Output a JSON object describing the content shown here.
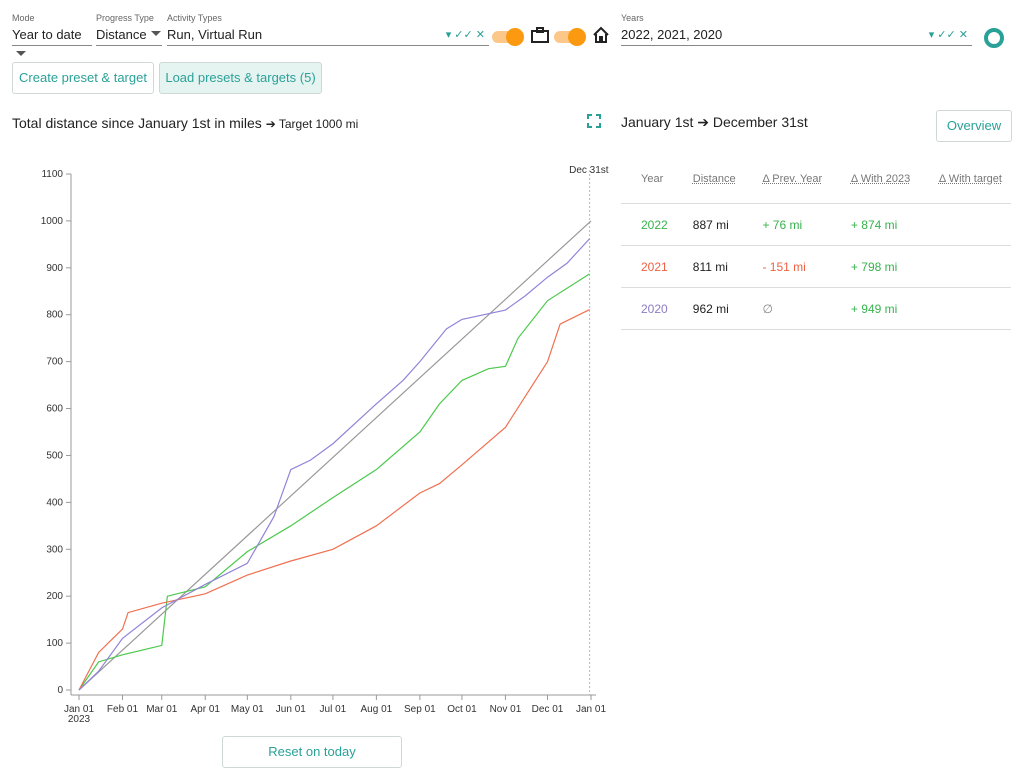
{
  "controls": {
    "mode": {
      "label": "Mode",
      "value": "Year to date"
    },
    "progress_type": {
      "label": "Progress Type",
      "value": "Distance"
    },
    "activity_types": {
      "label": "Activity Types",
      "value": "Run, Virtual Run"
    },
    "years": {
      "label": "Years",
      "value": "2022, 2021, 2020"
    }
  },
  "buttons": {
    "create": "Create preset & target",
    "load": "Load presets & targets (5)",
    "overview": "Overview",
    "reset": "Reset on today"
  },
  "chart_data": {
    "type": "line",
    "title": "Total distance since January 1st in miles",
    "target_label": "➔ Target 1000 mi",
    "target": 1000,
    "xlim": [
      "2023-01-01",
      "2024-01-01"
    ],
    "ylim": [
      0,
      1100
    ],
    "xticks": [
      {
        "value": "2023-01-01",
        "label": "Jan 01"
      },
      {
        "value": "2023-02-01",
        "label": "Feb 01"
      },
      {
        "value": "2023-03-01",
        "label": "Mar 01"
      },
      {
        "value": "2023-04-01",
        "label": "Apr 01"
      },
      {
        "value": "2023-05-01",
        "label": "May 01"
      },
      {
        "value": "2023-06-01",
        "label": "Jun 01"
      },
      {
        "value": "2023-07-01",
        "label": "Jul 01"
      },
      {
        "value": "2023-08-01",
        "label": "Aug 01"
      },
      {
        "value": "2023-09-01",
        "label": "Sep 01"
      },
      {
        "value": "2023-10-01",
        "label": "Oct 01"
      },
      {
        "value": "2023-11-01",
        "label": "Nov 01"
      },
      {
        "value": "2023-12-01",
        "label": "Dec 01"
      },
      {
        "value": "2024-01-01",
        "label": "Jan 01"
      }
    ],
    "x_year_label": "2023",
    "yticks": [
      0,
      100,
      200,
      300,
      400,
      500,
      600,
      700,
      800,
      900,
      1000,
      1100
    ],
    "grid": false,
    "marker": {
      "x": "2023-12-31",
      "label": "Dec 31st"
    },
    "series": [
      {
        "name": "2022",
        "color": "#4cc94c",
        "x": [
          "2023-01-01",
          "2023-01-15",
          "2023-02-01",
          "2023-03-01",
          "2023-03-05",
          "2023-04-01",
          "2023-05-01",
          "2023-06-01",
          "2023-07-01",
          "2023-08-01",
          "2023-09-01",
          "2023-09-15",
          "2023-10-01",
          "2023-10-20",
          "2023-11-01",
          "2023-11-10",
          "2023-12-01",
          "2023-12-31"
        ],
        "values": [
          0,
          60,
          75,
          95,
          200,
          220,
          295,
          350,
          410,
          470,
          550,
          610,
          660,
          685,
          690,
          750,
          830,
          887
        ]
      },
      {
        "name": "2021",
        "color": "#f07050",
        "x": [
          "2023-01-01",
          "2023-01-15",
          "2023-02-01",
          "2023-02-05",
          "2023-03-01",
          "2023-04-01",
          "2023-05-01",
          "2023-06-01",
          "2023-07-01",
          "2023-08-01",
          "2023-09-01",
          "2023-09-15",
          "2023-10-01",
          "2023-11-01",
          "2023-12-01",
          "2023-12-10",
          "2023-12-31"
        ],
        "values": [
          0,
          80,
          130,
          165,
          185,
          205,
          245,
          275,
          300,
          350,
          420,
          440,
          480,
          560,
          700,
          780,
          811
        ]
      },
      {
        "name": "2020",
        "color": "#9283d8",
        "x": [
          "2023-01-01",
          "2023-01-15",
          "2023-02-01",
          "2023-03-01",
          "2023-04-01",
          "2023-05-01",
          "2023-05-20",
          "2023-06-01",
          "2023-06-15",
          "2023-07-01",
          "2023-08-01",
          "2023-08-20",
          "2023-09-01",
          "2023-09-20",
          "2023-10-01",
          "2023-11-01",
          "2023-11-15",
          "2023-12-01",
          "2023-12-15",
          "2023-12-31"
        ],
        "values": [
          0,
          40,
          110,
          175,
          225,
          270,
          370,
          470,
          490,
          525,
          610,
          660,
          700,
          770,
          790,
          810,
          840,
          880,
          910,
          962
        ]
      }
    ]
  },
  "panel": {
    "heading": "January 1st ➔ December 31st"
  },
  "table": {
    "headers": [
      "Year",
      "Distance",
      "Δ Prev. Year",
      "Δ With 2023",
      "Δ With target"
    ],
    "rows": [
      [
        "2022",
        "887 mi",
        "+ 76 mi",
        "+ 874 mi",
        ""
      ],
      [
        "2021",
        "811 mi",
        "- 151 mi",
        "+ 798 mi",
        ""
      ],
      [
        "2020",
        "962 mi",
        "∅",
        "+ 949 mi",
        ""
      ]
    ]
  }
}
